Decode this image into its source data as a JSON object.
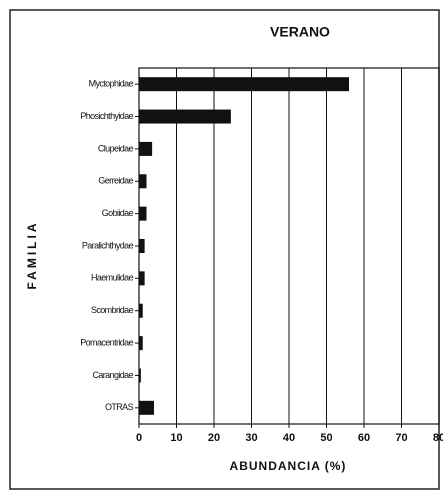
{
  "chart_data": {
    "type": "bar",
    "orientation": "horizontal",
    "title": "VERANO",
    "x_label": "ABUNDANCIA (%)",
    "y_label": "FAMILIA",
    "categories": [
      "Myctophidae",
      "Phosichthyidae",
      "Clupeidae",
      "Gerreidae",
      "Gobiidae",
      "Paralichthydae",
      "Haemulidae",
      "Scombridae",
      "Pomacentridae",
      "Carangidae",
      "OTRAS"
    ],
    "values": [
      56,
      24.5,
      3.5,
      2,
      2,
      1.5,
      1.5,
      1,
      1,
      0.5,
      4
    ],
    "color": "#111111",
    "xlim": [
      0,
      80
    ],
    "xticks": [
      0,
      10,
      20,
      30,
      40,
      50,
      60,
      70,
      80
    ],
    "grid": true
  }
}
